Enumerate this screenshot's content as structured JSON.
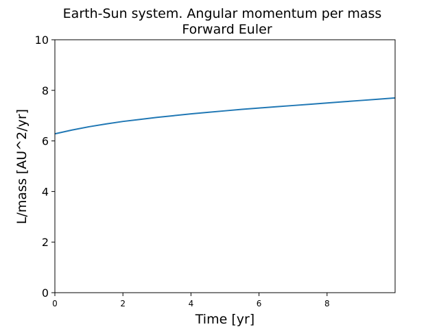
{
  "chart_data": {
    "type": "line",
    "title": "Earth-Sun system. Angular momentum per mass",
    "subtitle": "Forward Euler",
    "xlabel": "Time [yr]",
    "ylabel": "L/mass [AU^2/yr]",
    "xlim": [
      0,
      10
    ],
    "ylim": [
      0,
      10
    ],
    "x_ticks": [
      0,
      2,
      4,
      6,
      8
    ],
    "x_tick_labels": [
      "0",
      "2",
      "4",
      "6",
      "8"
    ],
    "y_ticks": [
      0,
      2,
      4,
      6,
      8,
      10
    ],
    "y_tick_labels": [
      "0",
      "2",
      "4",
      "6",
      "8",
      "10"
    ],
    "grid": false,
    "series": [
      {
        "color": "#1f77b4",
        "x": [
          0,
          0.5,
          1,
          1.5,
          2,
          2.5,
          3,
          3.5,
          4,
          4.5,
          5,
          5.5,
          6,
          6.5,
          7,
          7.5,
          8,
          8.5,
          9,
          9.5,
          10
        ],
        "y": [
          6.28,
          6.43,
          6.56,
          6.67,
          6.77,
          6.85,
          6.93,
          7.0,
          7.07,
          7.13,
          7.19,
          7.25,
          7.3,
          7.35,
          7.4,
          7.45,
          7.5,
          7.55,
          7.6,
          7.65,
          7.7
        ]
      }
    ]
  }
}
